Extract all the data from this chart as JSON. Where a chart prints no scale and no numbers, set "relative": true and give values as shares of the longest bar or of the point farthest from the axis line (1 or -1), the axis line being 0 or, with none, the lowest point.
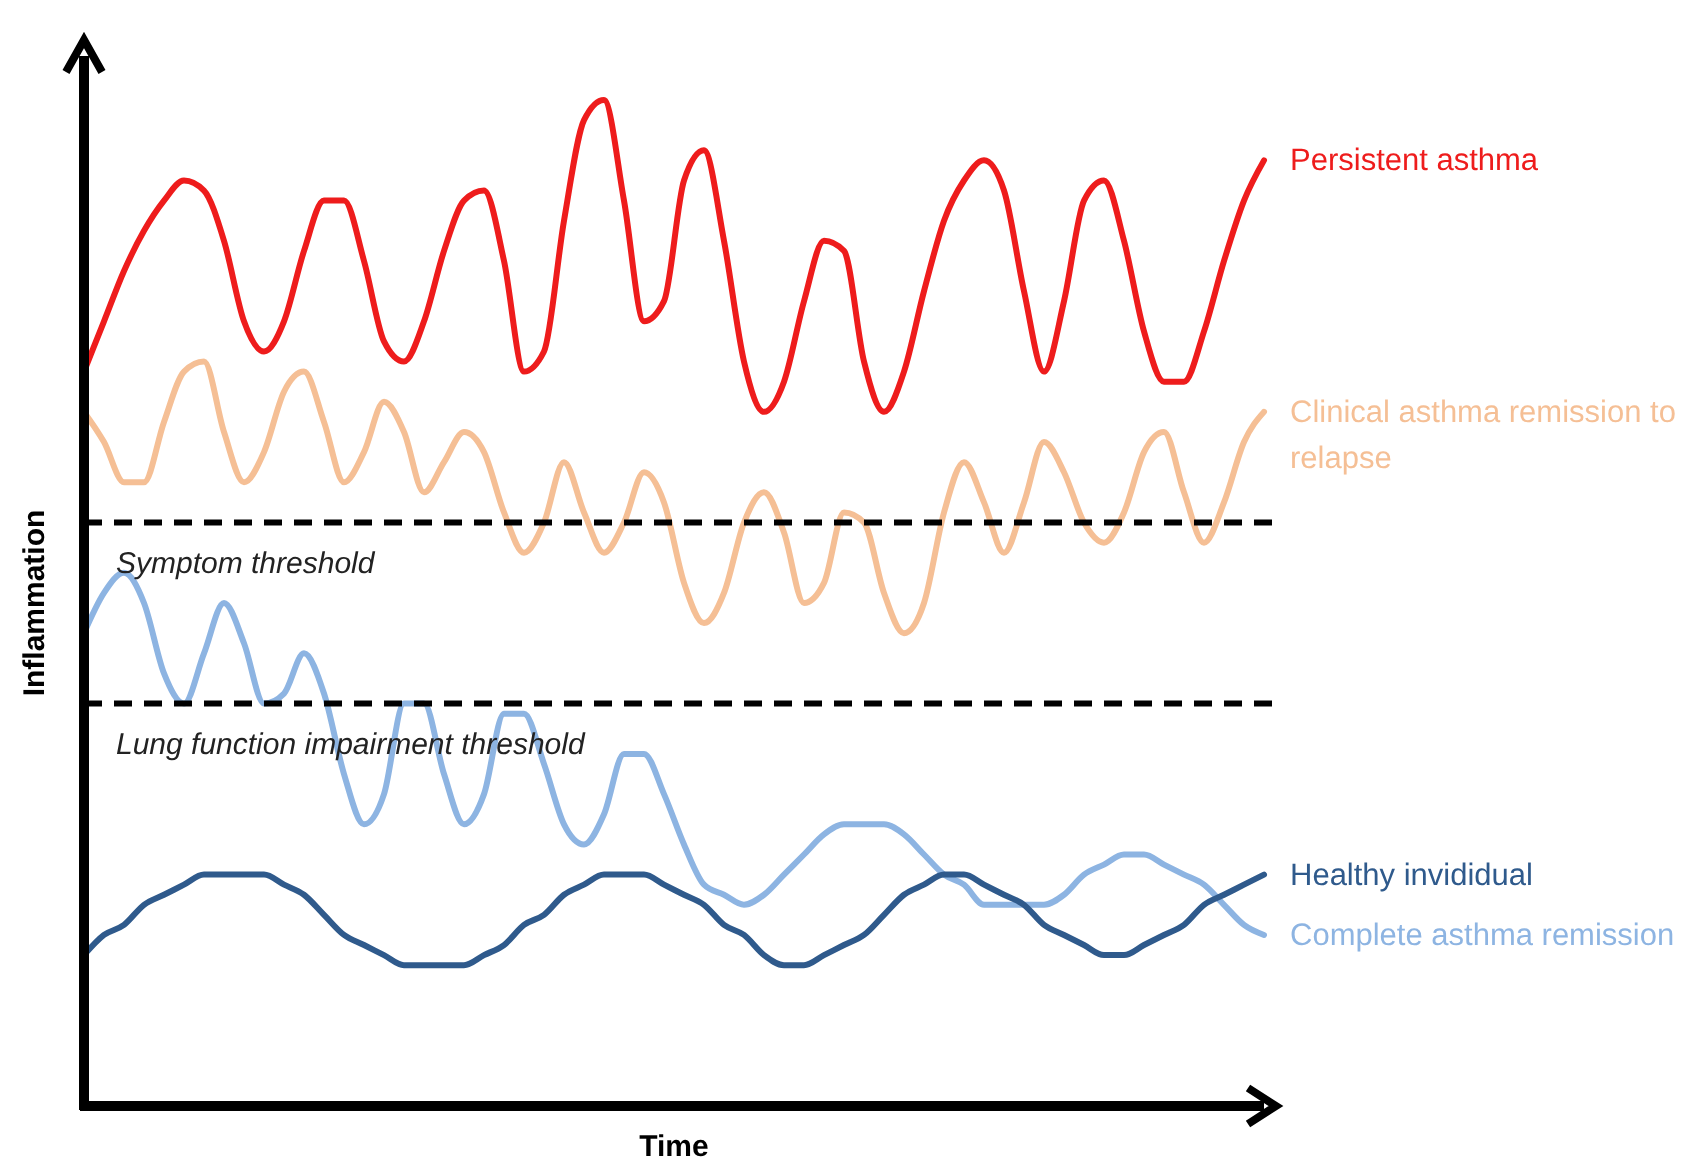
{
  "chart_data": {
    "type": "line",
    "relative": true,
    "xlabel": "Time",
    "ylabel": "Inflammation",
    "categories": [
      null,
      null,
      null,
      null,
      null,
      null,
      null,
      null,
      null,
      null,
      null,
      null,
      null,
      null,
      null,
      null,
      null,
      null,
      null,
      null,
      null,
      null,
      null,
      null,
      null,
      null,
      null,
      null,
      null,
      null,
      null,
      null,
      null,
      null,
      null,
      null,
      null,
      null,
      null,
      null,
      null,
      null,
      null,
      null,
      null,
      null,
      null,
      null,
      null,
      null,
      null,
      null,
      null,
      null,
      null,
      null,
      null,
      null,
      null,
      null
    ],
    "series": [
      {
        "name": "Persistent asthma",
        "color": "#ee1c1c",
        "values": [
          0.73,
          0.78,
          0.83,
          0.87,
          0.9,
          0.92,
          0.91,
          0.86,
          0.78,
          0.75,
          0.78,
          0.85,
          0.9,
          0.9,
          0.84,
          0.76,
          0.74,
          0.78,
          0.85,
          0.9,
          0.91,
          0.84,
          0.73,
          0.75,
          0.88,
          0.98,
          1.0,
          0.9,
          0.78,
          0.8,
          0.92,
          0.95,
          0.86,
          0.74,
          0.69,
          0.72,
          0.8,
          0.86,
          0.85,
          0.74,
          0.69,
          0.73,
          0.81,
          0.88,
          0.92,
          0.94,
          0.91,
          0.81,
          0.73,
          0.8,
          0.9,
          0.92,
          0.86,
          0.77,
          0.72,
          0.72,
          0.77,
          0.84,
          0.9,
          0.94
        ]
      },
      {
        "name": "Clinical asthma remission to relapse",
        "color": "#f5bf95",
        "values": [
          0.69,
          0.66,
          0.62,
          0.62,
          0.68,
          0.73,
          0.74,
          0.67,
          0.62,
          0.65,
          0.71,
          0.73,
          0.68,
          0.62,
          0.65,
          0.7,
          0.67,
          0.61,
          0.64,
          0.67,
          0.65,
          0.59,
          0.55,
          0.58,
          0.64,
          0.59,
          0.55,
          0.58,
          0.63,
          0.6,
          0.52,
          0.48,
          0.51,
          0.58,
          0.61,
          0.57,
          0.5,
          0.52,
          0.59,
          0.58,
          0.51,
          0.47,
          0.5,
          0.59,
          0.64,
          0.6,
          0.55,
          0.6,
          0.66,
          0.63,
          0.58,
          0.56,
          0.59,
          0.65,
          0.67,
          0.61,
          0.56,
          0.6,
          0.66,
          0.69
        ]
      },
      {
        "name": "Complete asthma remission",
        "color": "#8db4e2",
        "values": [
          0.47,
          0.51,
          0.53,
          0.5,
          0.43,
          0.4,
          0.45,
          0.5,
          0.46,
          0.4,
          0.41,
          0.45,
          0.41,
          0.33,
          0.28,
          0.31,
          0.4,
          0.4,
          0.33,
          0.28,
          0.31,
          0.39,
          0.39,
          0.34,
          0.28,
          0.26,
          0.29,
          0.35,
          0.35,
          0.31,
          0.26,
          0.22,
          0.21,
          0.2,
          0.21,
          0.23,
          0.25,
          0.27,
          0.28,
          0.28,
          0.28,
          0.27,
          0.25,
          0.23,
          0.22,
          0.2,
          0.2,
          0.2,
          0.2,
          0.21,
          0.23,
          0.24,
          0.25,
          0.25,
          0.24,
          0.23,
          0.22,
          0.2,
          0.18,
          0.17
        ]
      },
      {
        "name": "Healthy invididual",
        "color": "#2f5a8c",
        "values": [
          0.15,
          0.17,
          0.18,
          0.2,
          0.21,
          0.22,
          0.23,
          0.23,
          0.23,
          0.23,
          0.22,
          0.21,
          0.19,
          0.17,
          0.16,
          0.15,
          0.14,
          0.14,
          0.14,
          0.14,
          0.15,
          0.16,
          0.18,
          0.19,
          0.21,
          0.22,
          0.23,
          0.23,
          0.23,
          0.22,
          0.21,
          0.2,
          0.18,
          0.17,
          0.15,
          0.14,
          0.14,
          0.15,
          0.16,
          0.17,
          0.19,
          0.21,
          0.22,
          0.23,
          0.23,
          0.22,
          0.21,
          0.2,
          0.18,
          0.17,
          0.16,
          0.15,
          0.15,
          0.16,
          0.17,
          0.18,
          0.2,
          0.21,
          0.22,
          0.23
        ]
      }
    ],
    "ref_lines": [
      {
        "axis": "y",
        "value": 0.58,
        "label": "Symptom threshold",
        "color": "#000000",
        "line_style": "dashed"
      },
      {
        "axis": "y",
        "value": 0.4,
        "label": "Lung function impairment threshold",
        "color": "#000000",
        "line_style": "dashed"
      }
    ]
  }
}
